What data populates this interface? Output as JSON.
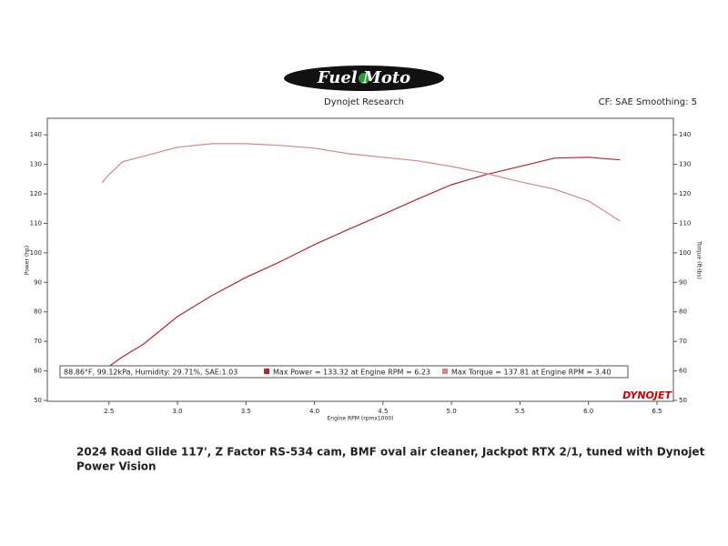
{
  "chart_data": {
    "type": "line",
    "logo": "Fuel Moto",
    "title": "Dynojet Research",
    "subtitle": "CF: SAE Smoothing: 5",
    "x_label": "Engine RPM (rpmx1000)",
    "y_label": "Power (hp)",
    "y2_label": "Torque (ft-lbs)",
    "watermark": "DYNOJET",
    "annotations": [
      "88.86°F, 99.12kPa, Humidity: 29.71%, SAE:1.03",
      "Max Power = 133.32 at Engine RPM = 6.23",
      "Max Torque = 137.81 at Engine RPM = 3.40"
    ],
    "caption": [
      "2024 Road Glide 117', Z Factor RS-534 cam, BMF oval air cleaner, Jackpot RTX 2/1, tuned with Dynojet",
      "Power Vision"
    ],
    "x": [
      2.45,
      2.5,
      2.6,
      2.75,
      3.0,
      3.25,
      3.5,
      3.75,
      4.0,
      4.25,
      4.5,
      4.75,
      5.0,
      5.25,
      5.5,
      5.75,
      6.0,
      6.23
    ],
    "series": [
      {
        "name": "Max Power",
        "color": "#b3262e",
        "axis": "y",
        "values": [
          null,
          61.5,
          64.8,
          69,
          78.4,
          85.5,
          91.7,
          97,
          102.8,
          108,
          113,
          118.2,
          123.1,
          126.5,
          129.3,
          132.1,
          132.4,
          131.5
        ]
      },
      {
        "name": "Max Torque",
        "color": "#d8848a",
        "axis": "y2",
        "values": [
          123.8,
          126.5,
          130.9,
          132.7,
          135.8,
          137,
          137,
          136.4,
          135.5,
          133.6,
          132.4,
          131.2,
          129.3,
          126.9,
          124.1,
          121.6,
          117.6,
          110.8
        ]
      }
    ],
    "xlim": [
      2.05,
      6.62
    ],
    "xticks": [
      2.5,
      {
        "value": 3,
        "label": "3.0"
      },
      3.5,
      {
        "value": 4,
        "label": "4.0"
      },
      4.5,
      {
        "value": 5,
        "label": "5.0"
      },
      5.5,
      {
        "value": 6,
        "label": "6.0"
      },
      6.5
    ],
    "ylim": [
      49.7,
      145.6
    ],
    "yticks": [
      50,
      60,
      70,
      80,
      90,
      100,
      110,
      120,
      130,
      140
    ],
    "y2lim": [
      49.7,
      145.6
    ],
    "y2ticks": [
      50,
      60,
      70,
      80,
      90,
      100,
      110,
      120,
      130,
      140
    ],
    "grid": false
  }
}
